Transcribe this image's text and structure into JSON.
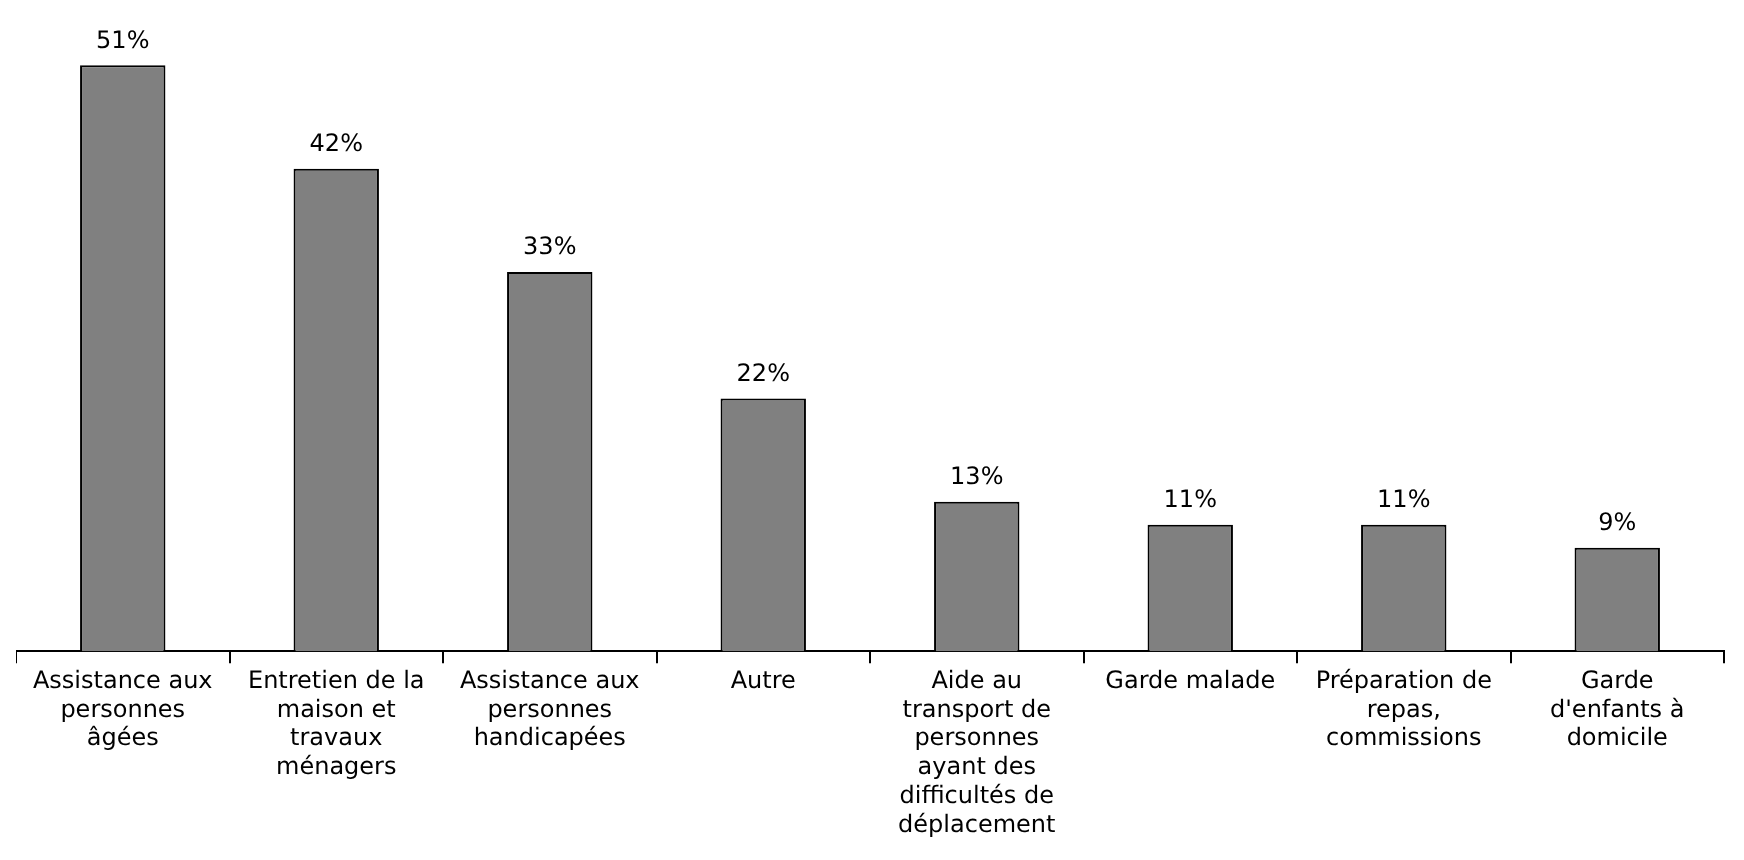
{
  "chart_data": {
    "type": "bar",
    "categories": [
      "Assistance aux personnes âgées",
      "Entretien de la maison et travaux ménagers",
      "Assistance aux personnes handicapées",
      "Autre",
      "Aide au transport de personnes ayant des difficultés de déplacement",
      "Garde malade",
      "Préparation de repas, commissions",
      "Garde d'enfants à domicile"
    ],
    "values": [
      51,
      42,
      33,
      22,
      13,
      11,
      11,
      9
    ],
    "value_labels": [
      "51%",
      "42%",
      "33%",
      "22%",
      "13%",
      "11%",
      "11%",
      "9%"
    ],
    "color": "#808080",
    "grid": false,
    "legend": false
  }
}
